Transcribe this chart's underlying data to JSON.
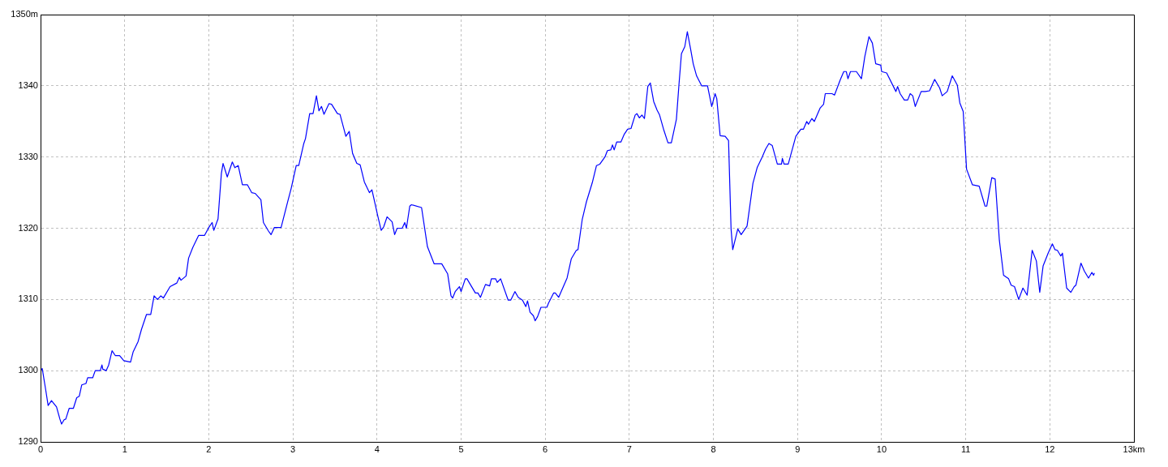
{
  "chart_data": {
    "type": "line",
    "x": [
      0,
      0.02,
      0.06,
      0.09,
      0.13,
      0.19,
      0.23,
      0.25,
      0.28,
      0.3,
      0.34,
      0.39,
      0.43,
      0.46,
      0.49,
      0.54,
      0.56,
      0.62,
      0.65,
      0.71,
      0.73,
      0.74,
      0.78,
      0.81,
      0.85,
      0.89,
      0.94,
      0.99,
      1.07,
      1.1,
      1.16,
      1.2,
      1.26,
      1.31,
      1.35,
      1.39,
      1.43,
      1.46,
      1.54,
      1.62,
      1.65,
      1.67,
      1.73,
      1.76,
      1.81,
      1.88,
      1.95,
      2.0,
      2.04,
      2.06,
      2.11,
      2.15,
      2.17,
      2.22,
      2.28,
      2.31,
      2.35,
      2.4,
      2.46,
      2.51,
      2.55,
      2.62,
      2.65,
      2.71,
      2.74,
      2.78,
      2.86,
      2.94,
      2.98,
      3.04,
      3.07,
      3.13,
      3.15,
      3.2,
      3.24,
      3.28,
      3.31,
      3.34,
      3.37,
      3.43,
      3.46,
      3.53,
      3.56,
      3.63,
      3.67,
      3.71,
      3.76,
      3.8,
      3.85,
      3.91,
      3.94,
      4.01,
      4.05,
      4.08,
      4.12,
      4.18,
      4.21,
      4.24,
      4.3,
      4.33,
      4.35,
      4.39,
      4.41,
      4.53,
      4.6,
      4.68,
      4.77,
      4.84,
      4.88,
      4.9,
      4.93,
      4.98,
      5.0,
      5.05,
      5.07,
      5.12,
      5.17,
      5.2,
      5.23,
      5.29,
      5.34,
      5.36,
      5.41,
      5.43,
      5.47,
      5.56,
      5.59,
      5.64,
      5.68,
      5.73,
      5.77,
      5.79,
      5.82,
      5.86,
      5.88,
      5.91,
      5.95,
      6.02,
      6.04,
      6.1,
      6.12,
      6.16,
      6.26,
      6.31,
      6.37,
      6.39,
      6.44,
      6.49,
      6.56,
      6.61,
      6.65,
      6.71,
      6.74,
      6.78,
      6.8,
      6.82,
      6.85,
      6.9,
      6.94,
      6.98,
      7.02,
      7.07,
      7.09,
      7.12,
      7.15,
      7.18,
      7.22,
      7.25,
      7.29,
      7.33,
      7.36,
      7.41,
      7.46,
      7.5,
      7.56,
      7.59,
      7.62,
      7.66,
      7.69,
      7.73,
      7.76,
      7.8,
      7.86,
      7.93,
      7.98,
      8.02,
      8.04,
      8.08,
      8.14,
      8.18,
      8.21,
      8.23,
      8.29,
      8.33,
      8.4,
      8.47,
      8.52,
      8.58,
      8.62,
      8.66,
      8.7,
      8.76,
      8.81,
      8.82,
      8.84,
      8.89,
      8.98,
      9.04,
      9.07,
      9.11,
      9.13,
      9.17,
      9.2,
      9.27,
      9.31,
      9.33,
      9.41,
      9.44,
      9.51,
      9.55,
      9.58,
      9.6,
      9.63,
      9.7,
      9.76,
      9.8,
      9.85,
      9.89,
      9.93,
      9.99,
      10.0,
      10.06,
      10.17,
      10.19,
      10.22,
      10.27,
      10.31,
      10.34,
      10.37,
      10.4,
      10.47,
      10.52,
      10.57,
      10.63,
      10.69,
      10.72,
      10.78,
      10.84,
      10.9,
      10.93,
      10.97,
      11.01,
      11.08,
      11.16,
      11.23,
      11.25,
      11.31,
      11.35,
      11.4,
      11.45,
      11.51,
      11.54,
      11.58,
      11.63,
      11.68,
      11.73,
      11.79,
      11.84,
      11.88,
      11.92,
      11.98,
      12.03,
      12.06,
      12.09,
      12.13,
      12.15,
      12.2,
      12.25,
      12.29,
      12.31,
      12.37,
      12.41,
      12.46,
      12.5,
      12.52,
      12.53
    ],
    "series": [
      {
        "color": "#0000ff",
        "values": [
          1300,
          1300.3,
          1297.4,
          1295.1,
          1295.8,
          1294.9,
          1293.2,
          1292.5,
          1293.1,
          1293.2,
          1294.7,
          1294.7,
          1296.2,
          1296.4,
          1298,
          1298.2,
          1299,
          1299,
          1300,
          1300,
          1300.8,
          1300.2,
          1300,
          1300.8,
          1302.8,
          1302.1,
          1302.1,
          1301.4,
          1301.2,
          1302.6,
          1304.1,
          1305.8,
          1307.9,
          1307.9,
          1310.5,
          1310,
          1310.5,
          1310.2,
          1311.8,
          1312.3,
          1313.1,
          1312.7,
          1313.3,
          1315.8,
          1317.3,
          1319,
          1319,
          1320.1,
          1320.8,
          1319.7,
          1321.3,
          1327.7,
          1329.1,
          1327.2,
          1329.3,
          1328.5,
          1328.8,
          1326.1,
          1326.1,
          1325,
          1324.9,
          1324,
          1320.8,
          1319.6,
          1319.1,
          1320.1,
          1320.1,
          1323.8,
          1325.6,
          1328.8,
          1328.8,
          1331.9,
          1332.6,
          1336.1,
          1336.1,
          1338.6,
          1336.5,
          1337.1,
          1336,
          1337.5,
          1337.4,
          1336.1,
          1336,
          1332.9,
          1333.6,
          1330.5,
          1329.1,
          1328.9,
          1326.5,
          1325,
          1325.4,
          1321.7,
          1319.7,
          1320.2,
          1321.6,
          1320.9,
          1319.1,
          1320,
          1320,
          1320.8,
          1320,
          1323.1,
          1323.3,
          1322.9,
          1317.4,
          1315,
          1315,
          1313.6,
          1310.5,
          1310.2,
          1311.1,
          1311.8,
          1311.1,
          1312.9,
          1312.9,
          1311.9,
          1310.9,
          1310.9,
          1310.3,
          1312.1,
          1311.9,
          1312.9,
          1312.9,
          1312.4,
          1312.9,
          1309.9,
          1309.9,
          1311.1,
          1310.3,
          1309.9,
          1309,
          1309.8,
          1308.2,
          1307.7,
          1307,
          1307.6,
          1308.9,
          1308.9,
          1309.5,
          1310.9,
          1310.9,
          1310.3,
          1313,
          1315.7,
          1316.9,
          1317,
          1321.2,
          1323.7,
          1326.4,
          1328.8,
          1329,
          1330,
          1330.9,
          1331,
          1331.7,
          1331,
          1332.1,
          1332.1,
          1333.2,
          1333.9,
          1334,
          1335.9,
          1336.1,
          1335.5,
          1335.9,
          1335.4,
          1339.9,
          1340.4,
          1337.8,
          1336.6,
          1335.9,
          1333.8,
          1332,
          1332,
          1335.3,
          1340.1,
          1344.5,
          1345.5,
          1347.6,
          1345.1,
          1343.1,
          1341.4,
          1340,
          1340,
          1337.1,
          1338.9,
          1338.2,
          1333,
          1332.9,
          1332.3,
          1319.9,
          1317,
          1319.9,
          1319.1,
          1320.3,
          1326.3,
          1328.5,
          1330,
          1331.1,
          1331.9,
          1331.6,
          1329,
          1329,
          1329.8,
          1329,
          1329,
          1332.9,
          1333.9,
          1333.9,
          1335,
          1334.6,
          1335.4,
          1335,
          1336.9,
          1337.4,
          1338.9,
          1338.9,
          1338.7,
          1340.9,
          1342,
          1342,
          1341,
          1342,
          1342,
          1341,
          1344.1,
          1346.9,
          1346,
          1343.1,
          1342.9,
          1342,
          1341.8,
          1339.2,
          1339.9,
          1338.9,
          1338,
          1338,
          1338.9,
          1338.6,
          1337.1,
          1339.2,
          1339.2,
          1339.3,
          1340.9,
          1339.7,
          1338.6,
          1339.2,
          1341.4,
          1340.1,
          1337.6,
          1336.4,
          1328.3,
          1326.1,
          1325.9,
          1323.1,
          1323.1,
          1327.1,
          1326.9,
          1318.3,
          1313.4,
          1312.9,
          1312,
          1311.8,
          1310,
          1311.6,
          1310.6,
          1316.9,
          1315.4,
          1311,
          1314.7,
          1316.5,
          1317.8,
          1317,
          1316.9,
          1316.1,
          1316.5,
          1311.6,
          1311,
          1311.8,
          1312,
          1315.1,
          1314,
          1313,
          1313.8,
          1313.4,
          1313.7
        ]
      }
    ],
    "xlim": [
      0,
      13
    ],
    "ylim": [
      1290,
      1350
    ],
    "xticks": [
      0,
      1,
      2,
      3,
      4,
      5,
      6,
      7,
      8,
      9,
      10,
      11,
      12,
      {
        "value": 13,
        "label": "13km"
      }
    ],
    "yticks": [
      1290,
      1300,
      1310,
      1320,
      1330,
      1340,
      {
        "value": 1350,
        "label": "1350m"
      }
    ],
    "grid": true,
    "line_style": "solid"
  }
}
